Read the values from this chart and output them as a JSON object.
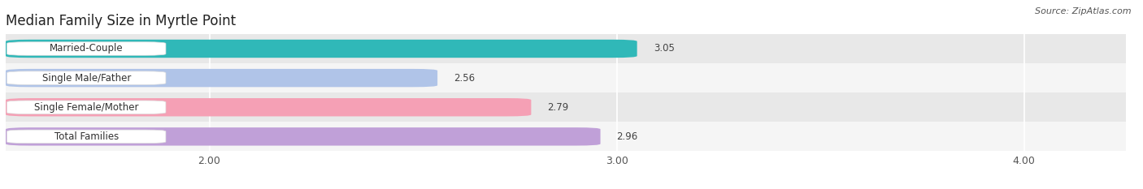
{
  "title": "Median Family Size in Myrtle Point",
  "source": "Source: ZipAtlas.com",
  "categories": [
    "Married-Couple",
    "Single Male/Father",
    "Single Female/Mother",
    "Total Families"
  ],
  "values": [
    3.05,
    2.56,
    2.79,
    2.96
  ],
  "bar_colors": [
    "#30b8b8",
    "#b0c4e8",
    "#f5a0b5",
    "#c0a0d8"
  ],
  "xlim": [
    1.5,
    4.25
  ],
  "xticks": [
    2.0,
    3.0,
    4.0
  ],
  "xtick_labels": [
    "2.00",
    "3.00",
    "4.00"
  ],
  "bar_height": 0.62,
  "row_bg_even": "#e8e8e8",
  "row_bg_odd": "#f5f5f5",
  "fig_bg": "#ffffff",
  "ax_bg": "#ffffff",
  "title_fontsize": 12,
  "label_fontsize": 8.5,
  "value_fontsize": 8.5,
  "tick_fontsize": 9,
  "source_fontsize": 8
}
